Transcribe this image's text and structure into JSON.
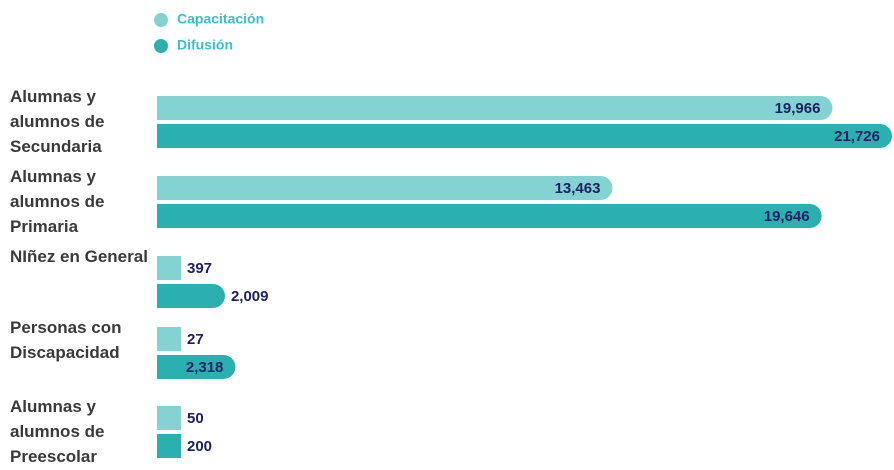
{
  "chart_data": {
    "type": "hbar",
    "categories": [
      "Alumnas y alumnos de Secundaria",
      "Alumnas y alumnos de Primaria",
      "NIñez en General",
      "Personas con Discapacidad",
      "Alumnas y alumnos de Preescolar"
    ],
    "series": [
      {
        "name": "Capacitación",
        "color": "#83d3d2",
        "values": [
          19966,
          13463,
          397,
          27,
          50
        ],
        "value_labels": [
          "19,966",
          "13,463",
          "397",
          "27",
          "50"
        ]
      },
      {
        "name": "Difusión",
        "color": "#2bb0b1",
        "values": [
          21726,
          19646,
          2009,
          2318,
          200
        ],
        "value_labels": [
          "21,726",
          "19,646",
          "2,009",
          "2,318",
          "200"
        ]
      }
    ]
  }
}
